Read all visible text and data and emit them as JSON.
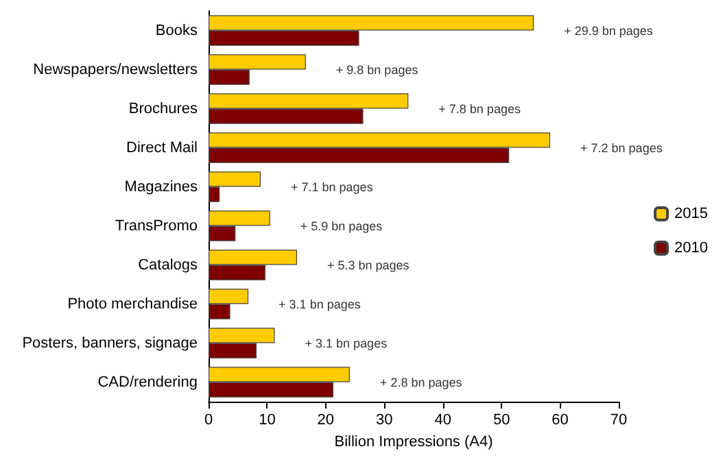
{
  "chart_data": {
    "type": "bar",
    "orientation": "horizontal",
    "xlabel": "Billion Impressions (A4)",
    "categories": [
      "Books",
      "Newspapers/newsletters",
      "Brochures",
      "Direct Mail",
      "Magazines",
      "TransPromo",
      "Catalogs",
      "Photo merchandise",
      "Posters, banners, signage",
      "CAD/rendering"
    ],
    "series": [
      {
        "name": "2015",
        "color": "#ffcc00",
        "values": [
          55.5,
          16.6,
          34.1,
          58.3,
          8.9,
          10.5,
          15.1,
          6.8,
          11.3,
          24.1
        ]
      },
      {
        "name": "2010",
        "color": "#7f0000",
        "values": [
          25.7,
          7.0,
          26.4,
          51.3,
          1.9,
          4.6,
          9.7,
          3.7,
          8.2,
          21.3
        ]
      }
    ],
    "xlim": [
      0,
      70
    ],
    "xticks": [
      0,
      10,
      20,
      30,
      40,
      50,
      60,
      70
    ],
    "grid": false,
    "legend": "right",
    "annotations": [
      "+ 29.9 bn pages",
      "+ 9.8 bn pages",
      "+ 7.8 bn pages",
      "+ 7.2 bn pages",
      "+ 7.1 bn pages",
      "+ 5.9 bn pages",
      "+ 5.3 bn pages",
      "+ 3.1 bn pages",
      "+ 3.1 bn pages",
      "+ 2.8 bn pages"
    ]
  }
}
